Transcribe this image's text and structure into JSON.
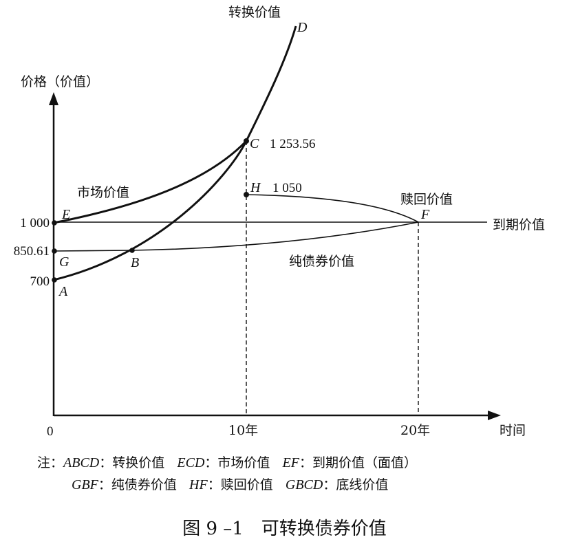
{
  "diagram": {
    "y_axis_label": "价格（价值）",
    "x_axis_label": "时间",
    "origin_label": "0",
    "x_ticks": [
      "10年",
      "20年"
    ],
    "y_values": [
      "1 000",
      "850.61",
      "700"
    ],
    "curve_labels": {
      "conversion": "转换价值",
      "market": "市场价值",
      "redemption": "赎回价值",
      "maturity": "到期价值",
      "straight_bond": "纯债券价值"
    },
    "points": {
      "A": "A",
      "B": "B",
      "C": "C",
      "D": "D",
      "E": "E",
      "F": "F",
      "G": "G",
      "H": "H"
    },
    "point_values": {
      "C": "1 253.56",
      "H": "1 050"
    }
  },
  "notes": {
    "prefix": "注：",
    "line1": [
      {
        "key": "ABCD",
        "sep": "：",
        "text": "转换价值"
      },
      {
        "key": "ECD",
        "sep": "：",
        "text": "市场价值"
      },
      {
        "key": "EF",
        "sep": "：",
        "text": "到期价值（面值）"
      }
    ],
    "line2": [
      {
        "key": "GBF",
        "sep": "：",
        "text": "纯债券价值"
      },
      {
        "key": "HF",
        "sep": "：",
        "text": "赎回价值"
      },
      {
        "key": "GBCD",
        "sep": "：",
        "text": "底线价值"
      }
    ]
  },
  "caption": "图 9 –1　可转换债券价值"
}
